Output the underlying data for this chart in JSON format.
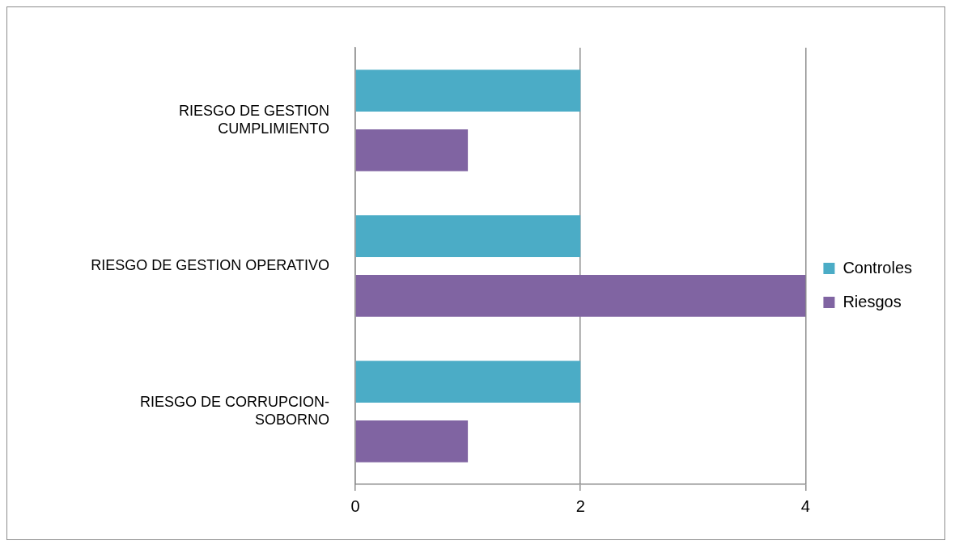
{
  "chart_data": {
    "type": "bar",
    "orientation": "horizontal",
    "categories": [
      "RIESGO DE GESTION\nCUMPLIMIENTO",
      "RIESGO DE GESTION OPERATIVO",
      "RIESGO DE CORRUPCION-\nSOBORNO"
    ],
    "series": [
      {
        "name": "Controles",
        "color": "#4bacc6",
        "values": [
          2,
          2,
          2
        ]
      },
      {
        "name": "Riesgos",
        "color": "#8064a2",
        "values": [
          1,
          4,
          1
        ]
      }
    ],
    "xlim": [
      0,
      4
    ],
    "xticks": [
      0,
      2,
      4
    ],
    "grid": "x",
    "legend": "right"
  }
}
